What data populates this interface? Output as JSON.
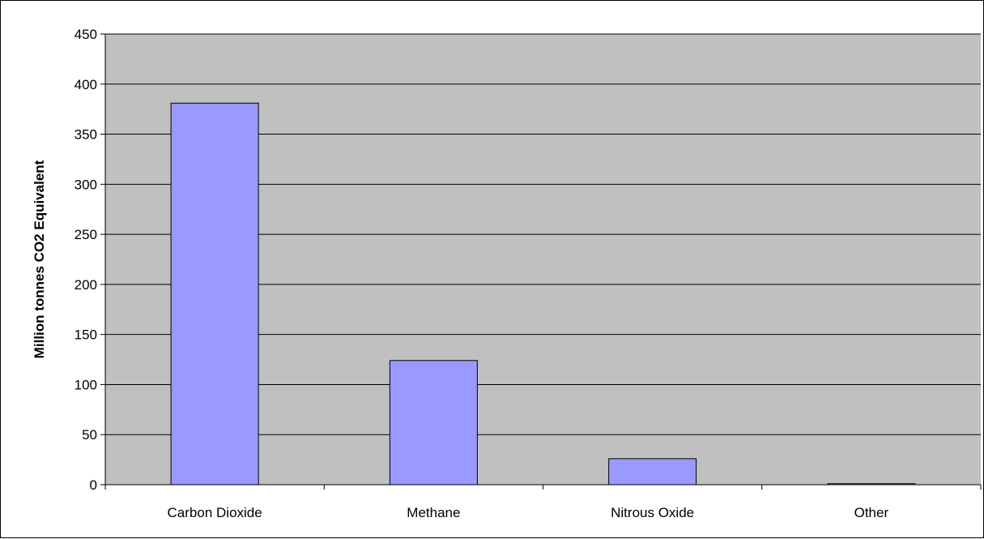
{
  "chart_data": {
    "type": "bar",
    "title": "",
    "xlabel": "",
    "ylabel": "Million tonnes CO2 Equivalent",
    "categories": [
      "Carbon Dioxide",
      "Methane",
      "Nitrous Oxide",
      "Other"
    ],
    "values": [
      381,
      124,
      26,
      1
    ],
    "ylim": [
      0,
      450
    ],
    "yticks": [
      0,
      50,
      100,
      150,
      200,
      250,
      300,
      350,
      400,
      450
    ],
    "grid": true,
    "legend": "none",
    "colors": {
      "plot_background": "#c0c0c0",
      "bar_fill": "#9999ff",
      "bar_stroke": "#000000",
      "gridline": "#000000"
    }
  }
}
